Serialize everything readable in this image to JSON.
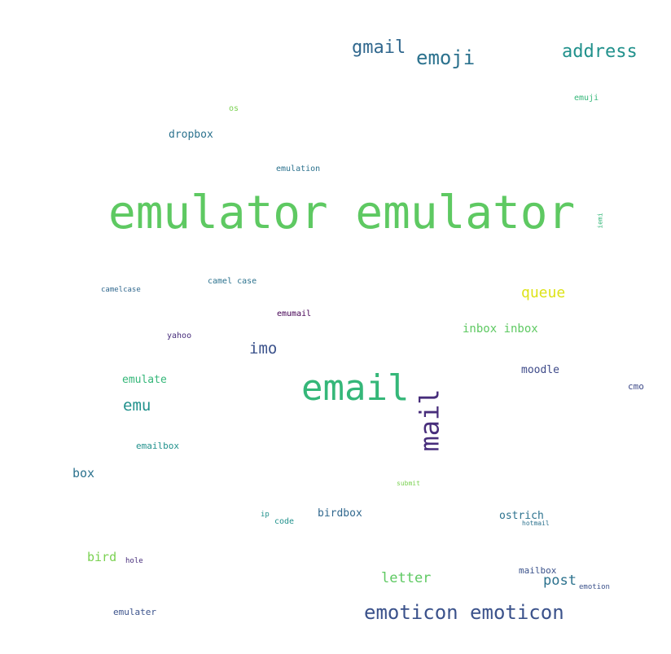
{
  "palette": {
    "green": "#5ec962",
    "teal_green": "#35b779",
    "teal": "#21918c",
    "blue_teal": "#2c728e",
    "slate_blue": "#3b528b",
    "indigo": "#472d7b",
    "dark_purple": "#440154",
    "lime": "#7ad151",
    "yellow": "#dde318"
  },
  "words": [
    {
      "text": "emulator emulator",
      "color": "#5ec962"
    },
    {
      "text": "email",
      "color": "#35b779"
    },
    {
      "text": "mail",
      "color": "#472d7b"
    },
    {
      "text": "emoticon emoticon",
      "color": "#3b528b"
    },
    {
      "text": "emoji",
      "color": "#2c728e"
    },
    {
      "text": "address",
      "color": "#21918c"
    },
    {
      "text": "gmail",
      "color": "#31688e"
    },
    {
      "text": "queue",
      "color": "#dde318"
    },
    {
      "text": "inbox inbox",
      "color": "#5ec962"
    },
    {
      "text": "imo",
      "color": "#3b528b"
    },
    {
      "text": "emu",
      "color": "#21918c"
    },
    {
      "text": "letter",
      "color": "#5ec962"
    },
    {
      "text": "post",
      "color": "#2c728e"
    },
    {
      "text": "emulate",
      "color": "#35b779"
    },
    {
      "text": "moodle",
      "color": "#3e4a89"
    },
    {
      "text": "box",
      "color": "#2c728e"
    },
    {
      "text": "bird",
      "color": "#7ad151"
    },
    {
      "text": "birdbox",
      "color": "#31688e"
    },
    {
      "text": "ostrich",
      "color": "#2c728e"
    },
    {
      "text": "dropbox",
      "color": "#2c728e"
    },
    {
      "text": "mailbox",
      "color": "#3b528b"
    },
    {
      "text": "emailbox",
      "color": "#21918c"
    },
    {
      "text": "emulater",
      "color": "#3b528b"
    },
    {
      "text": "code",
      "color": "#21918c"
    },
    {
      "text": "cmo",
      "color": "#3e4a89"
    },
    {
      "text": "emulation",
      "color": "#2c728e"
    },
    {
      "text": "emuji",
      "color": "#35b779"
    },
    {
      "text": "camel case",
      "color": "#2c728e"
    },
    {
      "text": "camelcase",
      "color": "#31688e"
    },
    {
      "text": "emumail",
      "color": "#440154"
    },
    {
      "text": "yahoo",
      "color": "#472d7b"
    },
    {
      "text": "os",
      "color": "#7ad151"
    },
    {
      "text": "hole",
      "color": "#472d7b"
    },
    {
      "text": "emotion",
      "color": "#3b528b"
    },
    {
      "text": "hotmail",
      "color": "#2c728e"
    },
    {
      "text": "submit",
      "color": "#7ad151"
    },
    {
      "text": "ip",
      "color": "#21918c"
    },
    {
      "text": "iemi",
      "color": "#35b779"
    }
  ]
}
